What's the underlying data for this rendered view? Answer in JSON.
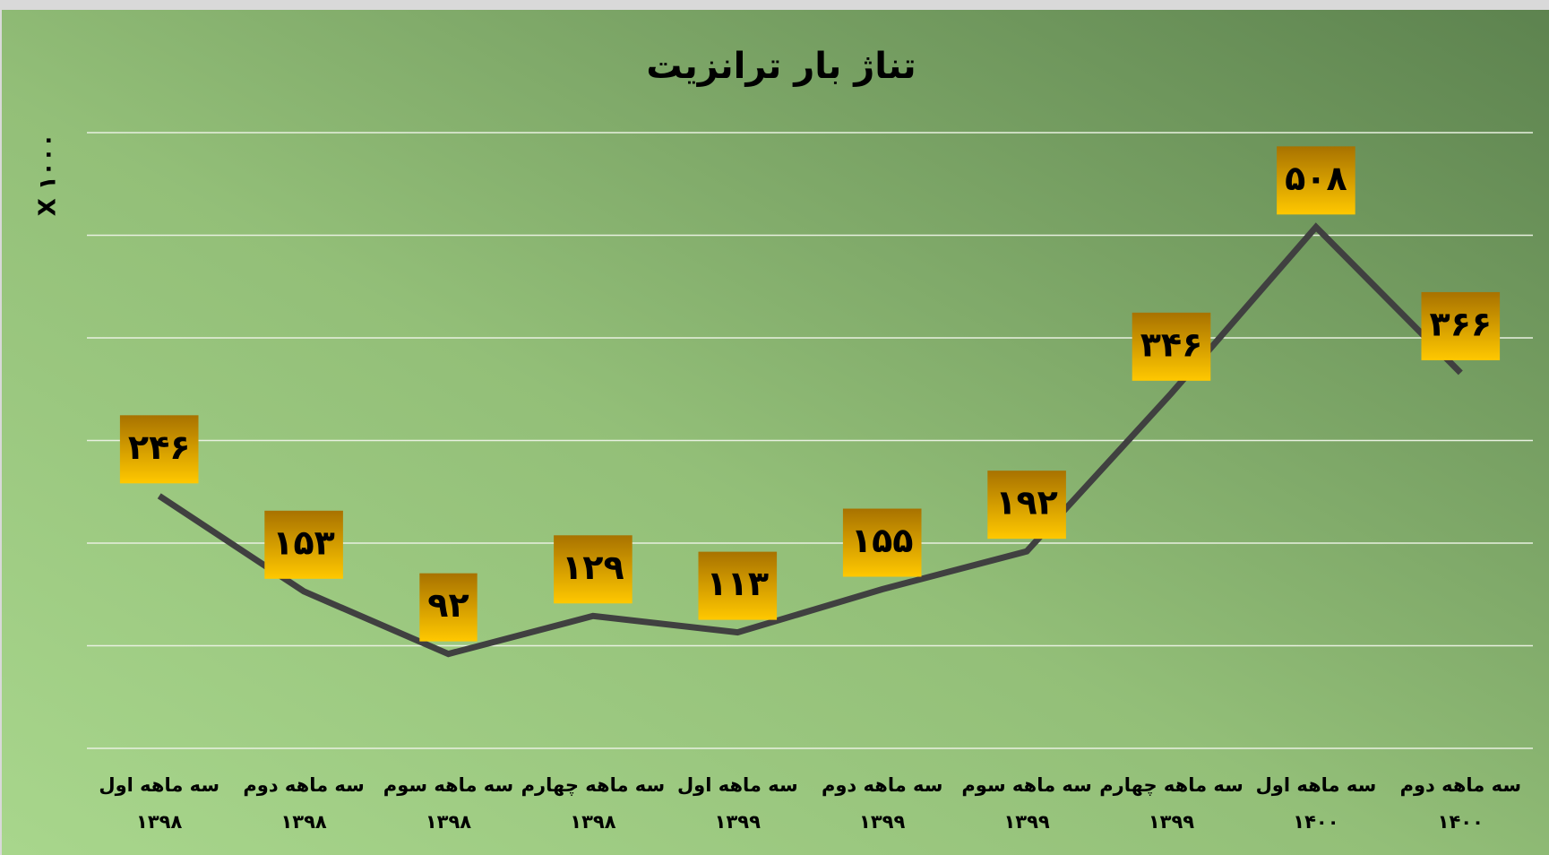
{
  "chart_data": {
    "type": "line",
    "title": "تناژ بار ترانزیت",
    "y_label": "X ۱۰۰۰",
    "categories": [
      [
        "سه ماهه اول",
        "۱۳۹۸"
      ],
      [
        "سه ماهه دوم",
        "۱۳۹۸"
      ],
      [
        "سه ماهه سوم",
        "۱۳۹۸"
      ],
      [
        "سه ماهه چهارم",
        "۱۳۹۸"
      ],
      [
        "سه ماهه اول",
        "۱۳۹۹"
      ],
      [
        "سه ماهه دوم",
        "۱۳۹۹"
      ],
      [
        "سه ماهه سوم",
        "۱۳۹۹"
      ],
      [
        "سه ماهه چهارم",
        "۱۳۹۹"
      ],
      [
        "سه ماهه اول",
        "۱۴۰۰"
      ],
      [
        "سه ماهه دوم",
        "۱۴۰۰"
      ]
    ],
    "values": [
      246,
      153,
      92,
      129,
      113,
      155,
      192,
      346,
      508,
      366
    ],
    "value_labels": [
      "۲۴۶",
      "۱۵۳",
      "۹۲",
      "۱۲۹",
      "۱۱۳",
      "۱۵۵",
      "۱۹۲",
      "۳۴۶",
      "۵۰۸",
      "۳۶۶"
    ],
    "color": "#404040",
    "ylim": [
      0,
      600
    ],
    "yticks": [
      0,
      100,
      200,
      300,
      400,
      500,
      600
    ],
    "grid": true
  }
}
